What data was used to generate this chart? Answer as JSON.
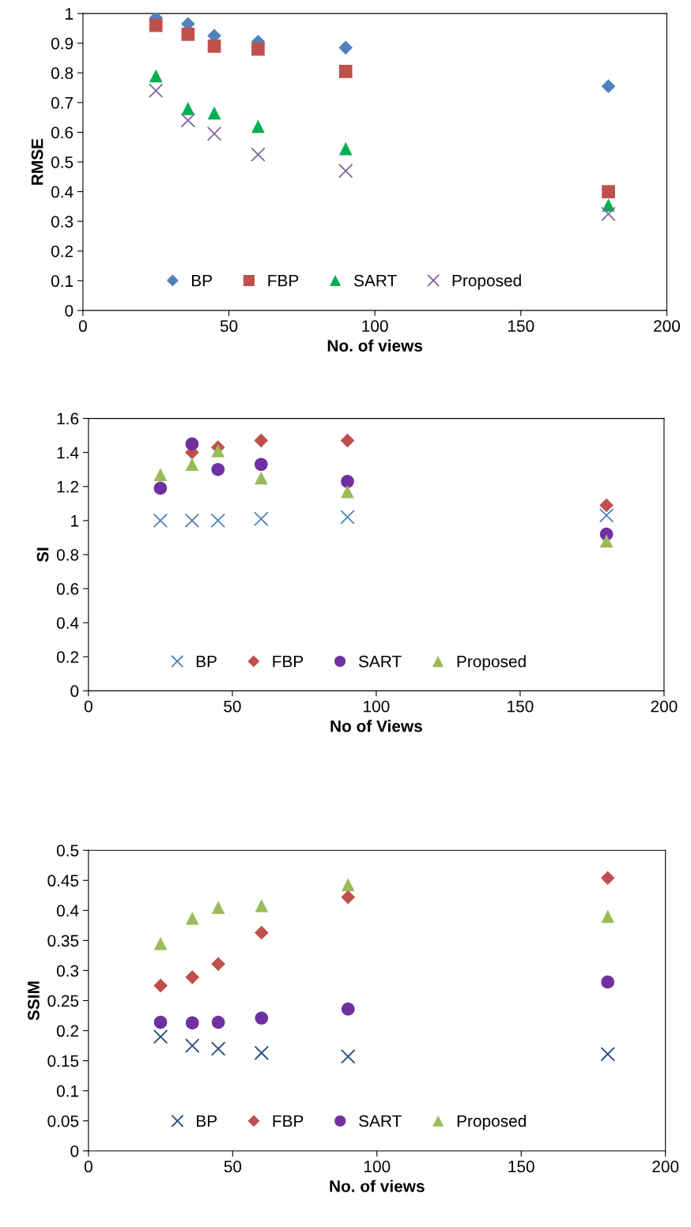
{
  "chart_data": [
    {
      "type": "scatter",
      "xlabel": "No. of views",
      "ylabel": "RMSE",
      "xlim": [
        0,
        200
      ],
      "xticks": [
        0,
        50,
        100,
        150,
        200
      ],
      "ylim": [
        0,
        1
      ],
      "yticks": [
        0,
        0.1,
        0.2,
        0.3,
        0.4,
        0.5,
        0.6,
        0.7,
        0.8,
        0.9,
        1
      ],
      "grid": false,
      "legend": "bottom left",
      "x": [
        25,
        36,
        45,
        60,
        90,
        180
      ],
      "series": [
        {
          "name": "BP",
          "color": "#4f81bd",
          "marker": "diamond",
          "values": [
            0.985,
            0.965,
            0.925,
            0.905,
            0.885,
            0.755
          ]
        },
        {
          "name": "FBP",
          "color": "#c0504d",
          "marker": "square",
          "values": [
            0.96,
            0.93,
            0.89,
            0.88,
            0.805,
            0.4
          ]
        },
        {
          "name": "SART",
          "color": "#00b050",
          "marker": "triangle",
          "values": [
            0.79,
            0.68,
            0.665,
            0.62,
            0.545,
            0.355
          ]
        },
        {
          "name": "Proposed",
          "color": "#8064a2",
          "marker": "cross",
          "values": [
            0.74,
            0.64,
            0.595,
            0.525,
            0.47,
            0.325
          ]
        }
      ]
    },
    {
      "type": "scatter",
      "xlabel": "No of Views",
      "ylabel": "SI",
      "xlim": [
        0,
        200
      ],
      "xticks": [
        0,
        50,
        100,
        150,
        200
      ],
      "ylim": [
        0,
        1.6
      ],
      "yticks": [
        0,
        0.2,
        0.4,
        0.6,
        0.8,
        1,
        1.2,
        1.4,
        1.6
      ],
      "grid": false,
      "legend": "bottom left",
      "x": [
        25,
        36,
        45,
        60,
        90,
        180
      ],
      "series": [
        {
          "name": "BP",
          "color": "#4f81bd",
          "marker": "cross",
          "values": [
            1.0,
            1.0,
            1.0,
            1.01,
            1.02,
            1.03
          ]
        },
        {
          "name": "FBP",
          "color": "#c0504d",
          "marker": "diamond",
          "values": [
            null,
            1.4,
            1.43,
            1.47,
            1.47,
            1.09
          ]
        },
        {
          "name": "SART",
          "color": "#7030a0",
          "marker": "circle",
          "values": [
            1.19,
            1.45,
            1.3,
            1.33,
            1.23,
            0.92
          ]
        },
        {
          "name": "Proposed",
          "color": "#9bbb59",
          "marker": "triangle",
          "values": [
            1.27,
            1.33,
            1.41,
            1.25,
            1.17,
            0.88
          ]
        }
      ]
    },
    {
      "type": "scatter",
      "xlabel": "No. of views",
      "ylabel": "SSIM",
      "xlim": [
        0,
        200
      ],
      "xticks": [
        0,
        50,
        100,
        150,
        200
      ],
      "ylim": [
        0,
        0.5
      ],
      "yticks": [
        0,
        0.05,
        0.1,
        0.15,
        0.2,
        0.25,
        0.3,
        0.35,
        0.4,
        0.45,
        0.5
      ],
      "grid": false,
      "legend": "bottom left",
      "x": [
        25,
        36,
        45,
        60,
        90,
        180
      ],
      "series": [
        {
          "name": "BP",
          "color": "#1f497d",
          "marker": "cross",
          "values": [
            0.19,
            0.175,
            0.17,
            0.163,
            0.157,
            0.161
          ]
        },
        {
          "name": "FBP",
          "color": "#c0504d",
          "marker": "diamond",
          "values": [
            0.275,
            0.289,
            0.311,
            0.363,
            0.422,
            0.454
          ]
        },
        {
          "name": "SART",
          "color": "#7030a0",
          "marker": "circle",
          "values": [
            0.214,
            0.213,
            0.214,
            0.221,
            0.236,
            0.281
          ]
        },
        {
          "name": "Proposed",
          "color": "#9bbb59",
          "marker": "triangle",
          "values": [
            0.345,
            0.387,
            0.405,
            0.408,
            0.443,
            0.39
          ]
        }
      ]
    }
  ]
}
